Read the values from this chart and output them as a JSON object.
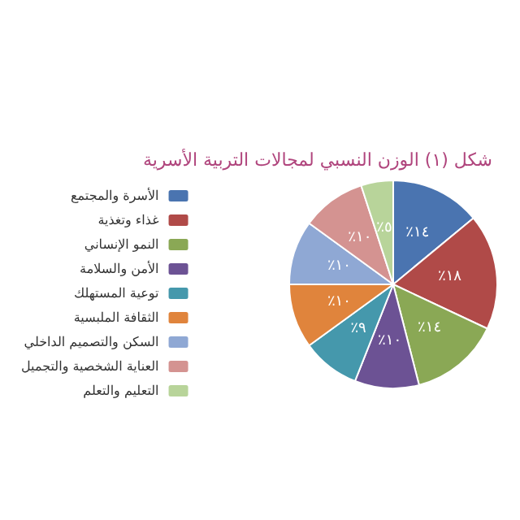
{
  "chart_data": {
    "type": "pie",
    "title": "شكل (١) الوزن النسبي لمجالات التربية الأسرية",
    "categories": [
      "الأسرة والمجتمع",
      "غذاء وتغذية",
      "النمو الإنساني",
      "الأمن والسلامة",
      "توعية المستهلك",
      "الثقافة الملبسية",
      "السكن والتصميم الداخلي",
      "العناية الشخصية والتجميل",
      "التعليم والتعلم"
    ],
    "values": [
      14,
      18,
      14,
      10,
      9,
      10,
      10,
      10,
      5
    ],
    "value_labels": [
      "٪١٤",
      "٪١٨",
      "٪١٤",
      "٪١٠",
      "٪٩",
      "٪١٠",
      "٪١٠",
      "٪١٠",
      "٪٥"
    ],
    "colors": [
      "#4a74b0",
      "#b04a48",
      "#8aa855",
      "#6c5294",
      "#4598ac",
      "#e0843c",
      "#8fa8d4",
      "#d49391",
      "#b8d49a"
    ],
    "legend": "left"
  }
}
